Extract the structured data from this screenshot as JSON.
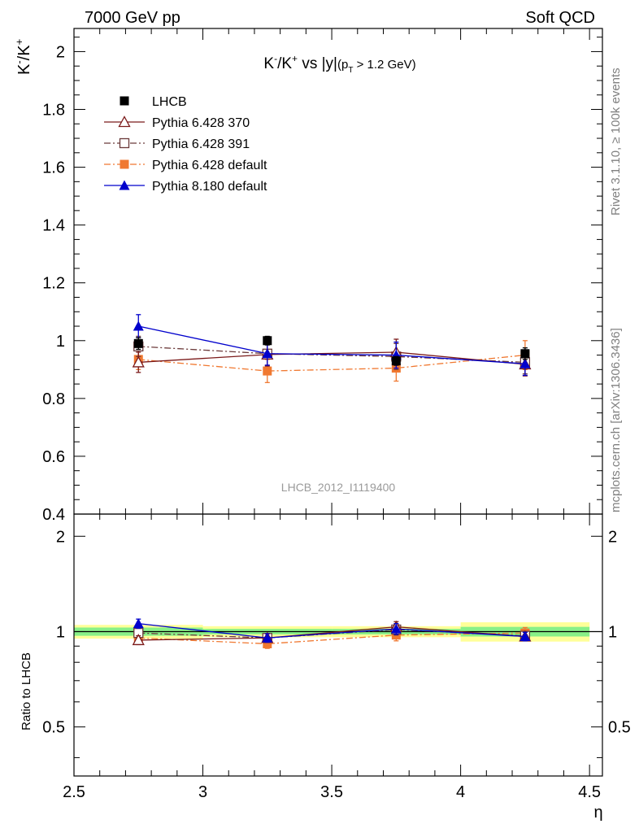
{
  "header": {
    "left": "7000 GeV pp",
    "right": "Soft QCD"
  },
  "side_labels": {
    "top": "Rivet 3.1.10, ≥ 100k events",
    "bottom": "mcplots.cern.ch [arXiv:1306.3436]"
  },
  "chart_data": {
    "type": "scatter",
    "title_main": "K",
    "title_sup1": "-",
    "title_mid": "/K",
    "title_sup2": "+",
    "title_rest": " vs |y|",
    "title_cond_open": "(p",
    "title_cond_sub": "T",
    "title_cond_rest": " > 1.2 GeV)",
    "ylabel_base": "K",
    "ylabel_sup1": "-",
    "ylabel_mid": "/K",
    "ylabel_sup2": "+",
    "xlabel": "η",
    "ratio_ylabel": "Ratio to LHCB",
    "watermark": "LHCB_2012_I1119400",
    "xlim": [
      2.5,
      4.55
    ],
    "ylim": [
      0.4,
      2.08
    ],
    "ratio_ylim": [
      0.35,
      2.35
    ],
    "x_ticks": [
      "2.5",
      "3",
      "3.5",
      "4",
      "4.5"
    ],
    "y_ticks": [
      "0.4",
      "0.6",
      "0.8",
      "1",
      "1.2",
      "1.4",
      "1.6",
      "1.8",
      "2"
    ],
    "ratio_y_ticks": [
      "0.5",
      "1",
      "2"
    ],
    "x": [
      2.75,
      3.25,
      3.75,
      4.25
    ],
    "x_bins": [
      [
        2.5,
        3.0
      ],
      [
        3.0,
        3.5
      ],
      [
        3.5,
        4.0
      ],
      [
        4.0,
        4.5
      ]
    ],
    "data_band_inner": [
      0.03,
      0.02,
      0.02,
      0.035
    ],
    "data_band_outer": [
      0.05,
      0.04,
      0.04,
      0.07
    ],
    "series": [
      {
        "name": "LHCB",
        "key": "lhcb",
        "values": [
          0.99,
          1.0,
          0.93,
          0.955
        ],
        "errors": [
          0.02,
          0.015,
          0.015,
          0.02
        ],
        "ratio": [
          1.0,
          1.0,
          1.0,
          1.0
        ],
        "ratio_errors": [
          0.0,
          0.0,
          0.0,
          0.0
        ],
        "color": "#000000",
        "marker": "square-filled",
        "line": "none"
      },
      {
        "name": "Pythia 6.428 370",
        "key": "p370",
        "values": [
          0.925,
          0.952,
          0.96,
          0.918
        ],
        "errors": [
          0.035,
          0.04,
          0.045,
          0.04
        ],
        "ratio": [
          0.94,
          0.955,
          1.035,
          0.965
        ],
        "ratio_errors": [
          0.03,
          0.03,
          0.04,
          0.03
        ],
        "color": "#7b1a1a",
        "marker": "triangle-open",
        "line": "solid"
      },
      {
        "name": "Pythia 6.428 391",
        "key": "p391",
        "values": [
          0.98,
          0.955,
          0.945,
          0.925
        ],
        "errors": [
          0.035,
          0.04,
          0.045,
          0.04
        ],
        "ratio": [
          0.99,
          0.955,
          1.015,
          0.97
        ],
        "ratio_errors": [
          0.03,
          0.03,
          0.04,
          0.03
        ],
        "color": "#6b3a3a",
        "marker": "square-open",
        "line": "dashdot"
      },
      {
        "name": "Pythia 6.428 default",
        "key": "p6def",
        "values": [
          0.935,
          0.895,
          0.905,
          0.95
        ],
        "errors": [
          0.035,
          0.04,
          0.045,
          0.05
        ],
        "ratio": [
          0.955,
          0.915,
          0.975,
          0.99
        ],
        "ratio_errors": [
          0.03,
          0.03,
          0.04,
          0.04
        ],
        "color": "#f07830",
        "marker": "square-filled",
        "line": "dashdot"
      },
      {
        "name": "Pythia 8.180 default",
        "key": "p8def",
        "values": [
          1.05,
          0.955,
          0.95,
          0.92
        ],
        "errors": [
          0.04,
          0.04,
          0.045,
          0.04
        ],
        "ratio": [
          1.06,
          0.955,
          1.02,
          0.965
        ],
        "ratio_errors": [
          0.035,
          0.03,
          0.04,
          0.03
        ],
        "color": "#0000cc",
        "marker": "triangle-filled",
        "line": "solid"
      }
    ],
    "legend_placement": "top-left"
  }
}
